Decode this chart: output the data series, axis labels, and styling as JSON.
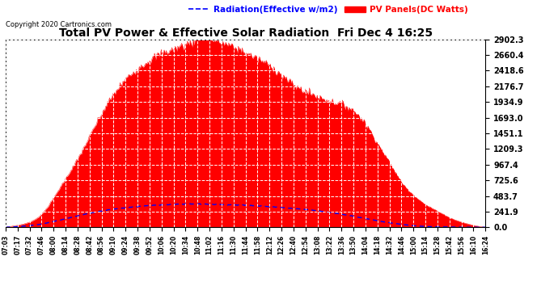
{
  "title": "Total PV Power & Effective Solar Radiation  Fri Dec 4 16:25",
  "copyright": "Copyright 2020 Cartronics.com",
  "legend_radiation": "Radiation(Effective w/m2)",
  "legend_pv": "PV Panels(DC Watts)",
  "ylabel_values": [
    0.0,
    241.9,
    483.7,
    725.6,
    967.4,
    1209.3,
    1451.1,
    1693.0,
    1934.9,
    2176.7,
    2418.6,
    2660.4,
    2902.3
  ],
  "ymax": 2902.3,
  "ymin": 0.0,
  "x_tick_labels": [
    "07:03",
    "07:17",
    "07:32",
    "07:46",
    "08:00",
    "08:14",
    "08:28",
    "08:42",
    "08:56",
    "09:10",
    "09:24",
    "09:38",
    "09:52",
    "10:06",
    "10:20",
    "10:34",
    "10:48",
    "11:02",
    "11:16",
    "11:30",
    "11:44",
    "11:58",
    "12:12",
    "12:26",
    "12:40",
    "12:54",
    "13:08",
    "13:22",
    "13:36",
    "13:50",
    "14:04",
    "14:18",
    "14:32",
    "14:46",
    "15:00",
    "15:14",
    "15:28",
    "15:42",
    "15:56",
    "16:10",
    "16:24"
  ],
  "background_color": "#ffffff",
  "fill_color": "#ff0000",
  "line_color": "#0000ff",
  "grid_color": "#c0c0c0",
  "title_color": "#000000",
  "copyright_color": "#000000",
  "legend_radiation_color": "#0000ff",
  "legend_pv_color": "#ff0000",
  "pv_shape_x": [
    0,
    1,
    2,
    3,
    4,
    5,
    6,
    7,
    8,
    9,
    10,
    11,
    12,
    13,
    14,
    15,
    16,
    17,
    18,
    19,
    20,
    21,
    22,
    23,
    24,
    25,
    26,
    27,
    28,
    29,
    30,
    31,
    32,
    33,
    34,
    35,
    36,
    37,
    38,
    39,
    40
  ],
  "pv_shape_y": [
    0,
    30,
    80,
    200,
    450,
    750,
    1050,
    1400,
    1750,
    2050,
    2280,
    2450,
    2580,
    2680,
    2750,
    2820,
    2870,
    2870,
    2850,
    2780,
    2700,
    2600,
    2500,
    2350,
    2200,
    2100,
    2020,
    1950,
    1900,
    1800,
    1600,
    1300,
    1000,
    700,
    500,
    350,
    250,
    150,
    80,
    30,
    0
  ],
  "rad_shape_x": [
    0,
    1,
    2,
    3,
    4,
    5,
    6,
    7,
    8,
    9,
    10,
    11,
    12,
    13,
    14,
    15,
    16,
    17,
    18,
    19,
    20,
    21,
    22,
    23,
    24,
    25,
    26,
    27,
    28,
    29,
    30,
    31,
    32,
    33,
    34,
    35,
    36,
    37,
    38,
    39,
    40
  ],
  "rad_shape_y": [
    0,
    10,
    25,
    50,
    90,
    130,
    175,
    215,
    250,
    280,
    300,
    320,
    335,
    345,
    355,
    360,
    360,
    355,
    350,
    345,
    340,
    330,
    318,
    305,
    290,
    275,
    255,
    230,
    200,
    170,
    135,
    100,
    70,
    45,
    25,
    12,
    6,
    3,
    1,
    0,
    0
  ]
}
